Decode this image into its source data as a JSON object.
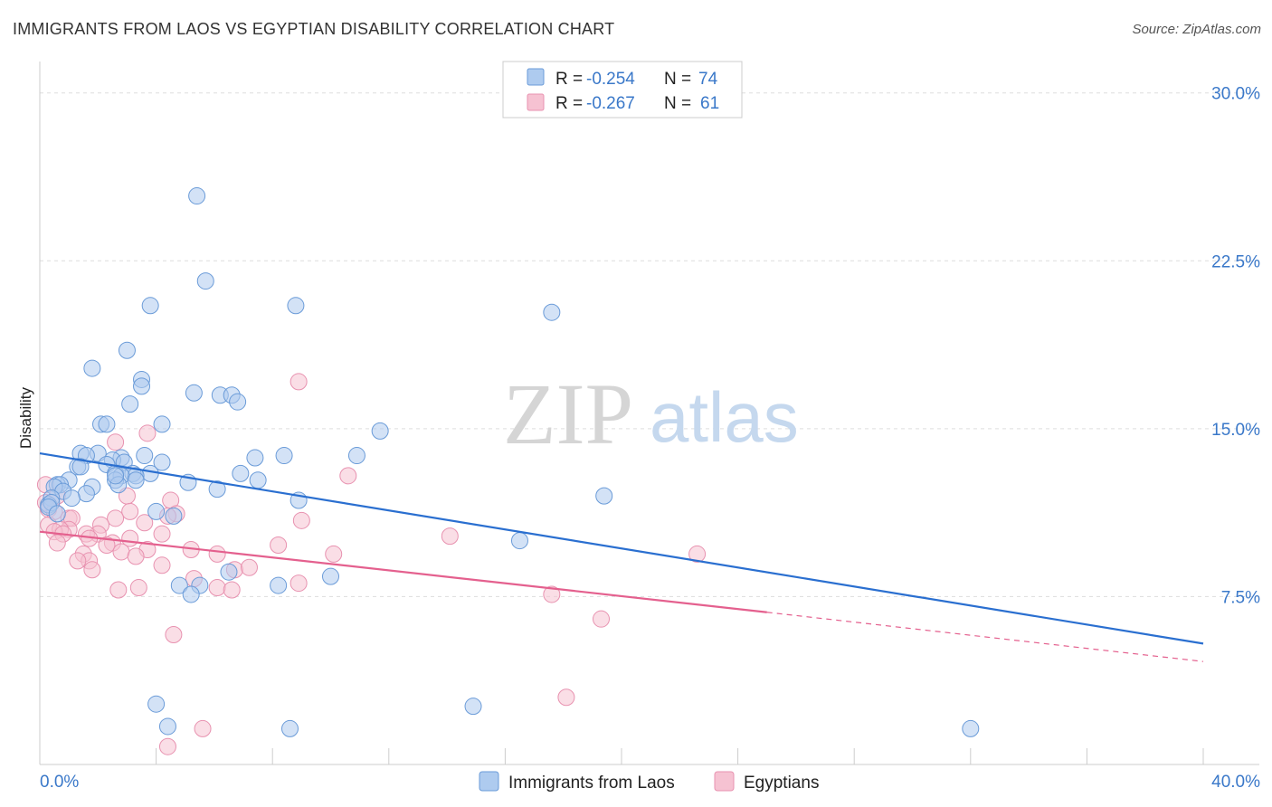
{
  "header": {
    "title": "IMMIGRANTS FROM LAOS VS EGYPTIAN DISABILITY CORRELATION CHART",
    "source": "Source: ZipAtlas.com"
  },
  "watermark": {
    "zip": "ZIP",
    "atlas": "atlas"
  },
  "legend": {
    "rows": [
      {
        "r_label": "R =",
        "r_value": "-0.254",
        "n_label": "N =",
        "n_value": "74"
      },
      {
        "r_label": "R =",
        "r_value": "-0.267",
        "n_label": "N =",
        "n_value": "61"
      }
    ]
  },
  "bottom_legend": [
    "Immigrants from Laos",
    "Egyptians"
  ],
  "colors": {
    "blue_fill": "#aecbef",
    "blue_stroke": "#6a9bd8",
    "blue_line": "#2a6fd0",
    "pink_fill": "#f6c2d2",
    "pink_stroke": "#e892b0",
    "pink_line": "#e4608e",
    "grid": "#dddddd",
    "tick_text": "#3a78c9"
  },
  "chart_data": {
    "type": "scatter",
    "title": "IMMIGRANTS FROM LAOS VS EGYPTIAN DISABILITY CORRELATION CHART",
    "ylabel": "Disability",
    "xlabel": "",
    "xlim": [
      0,
      40
    ],
    "ylim": [
      0,
      31
    ],
    "x_tick_labels": [
      {
        "v": 0,
        "label": "0.0%"
      },
      {
        "v": 40,
        "label": "40.0%"
      }
    ],
    "y_tick_labels": [
      {
        "v": 7.5,
        "label": "7.5%"
      },
      {
        "v": 15,
        "label": "15.0%"
      },
      {
        "v": 22.5,
        "label": "22.5%"
      },
      {
        "v": 30,
        "label": "30.0%"
      }
    ],
    "grid": true,
    "legend_position": "top-center",
    "series": [
      {
        "name": "Immigrants from Laos",
        "r": -0.254,
        "n": 74,
        "trend": {
          "x0": 0,
          "y0": 13.9,
          "x1": 40,
          "y1": 5.4
        },
        "points": [
          [
            5.4,
            25.4
          ],
          [
            5.7,
            21.6
          ],
          [
            3.8,
            20.5
          ],
          [
            8.8,
            20.5
          ],
          [
            17.6,
            20.2
          ],
          [
            3.0,
            18.5
          ],
          [
            1.8,
            17.7
          ],
          [
            3.5,
            17.2
          ],
          [
            3.5,
            16.9
          ],
          [
            5.3,
            16.6
          ],
          [
            6.2,
            16.5
          ],
          [
            6.6,
            16.5
          ],
          [
            6.8,
            16.2
          ],
          [
            3.1,
            16.1
          ],
          [
            4.2,
            15.2
          ],
          [
            2.1,
            15.2
          ],
          [
            2.3,
            15.2
          ],
          [
            11.7,
            14.9
          ],
          [
            1.4,
            13.9
          ],
          [
            2.0,
            13.9
          ],
          [
            3.6,
            13.8
          ],
          [
            8.4,
            13.8
          ],
          [
            10.9,
            13.8
          ],
          [
            7.4,
            13.7
          ],
          [
            1.6,
            13.8
          ],
          [
            2.8,
            13.7
          ],
          [
            2.5,
            13.6
          ],
          [
            2.9,
            13.5
          ],
          [
            4.2,
            13.5
          ],
          [
            2.3,
            13.4
          ],
          [
            1.3,
            13.3
          ],
          [
            1.4,
            13.3
          ],
          [
            2.6,
            13.0
          ],
          [
            3.8,
            13.0
          ],
          [
            3.2,
            13.0
          ],
          [
            6.9,
            13.0
          ],
          [
            3.3,
            12.9
          ],
          [
            2.8,
            12.9
          ],
          [
            2.6,
            12.7
          ],
          [
            3.3,
            12.7
          ],
          [
            5.1,
            12.6
          ],
          [
            7.5,
            12.7
          ],
          [
            1.0,
            12.7
          ],
          [
            0.6,
            12.5
          ],
          [
            0.7,
            12.5
          ],
          [
            0.5,
            12.4
          ],
          [
            1.8,
            12.4
          ],
          [
            2.7,
            12.5
          ],
          [
            6.1,
            12.3
          ],
          [
            0.8,
            12.2
          ],
          [
            1.6,
            12.1
          ],
          [
            1.1,
            11.9
          ],
          [
            0.4,
            11.9
          ],
          [
            0.3,
            11.6
          ],
          [
            0.4,
            11.7
          ],
          [
            8.9,
            11.8
          ],
          [
            19.4,
            12.0
          ],
          [
            0.3,
            11.5
          ],
          [
            4.0,
            11.3
          ],
          [
            4.6,
            11.1
          ],
          [
            16.5,
            10.0
          ],
          [
            6.5,
            8.6
          ],
          [
            10.0,
            8.4
          ],
          [
            4.8,
            8.0
          ],
          [
            5.5,
            8.0
          ],
          [
            8.2,
            8.0
          ],
          [
            5.2,
            7.6
          ],
          [
            4.0,
            2.7
          ],
          [
            14.9,
            2.6
          ],
          [
            4.4,
            1.7
          ],
          [
            8.6,
            1.6
          ],
          [
            32.0,
            1.6
          ],
          [
            0.6,
            11.2
          ],
          [
            2.6,
            12.9
          ]
        ]
      },
      {
        "name": "Egyptians",
        "r": -0.267,
        "n": 61,
        "trend": {
          "x0": 0,
          "y0": 10.4,
          "x1": 25,
          "y1": 6.8,
          "dash_x1": 40,
          "dash_y1": 4.6
        },
        "points": [
          [
            8.9,
            17.1
          ],
          [
            2.6,
            14.4
          ],
          [
            3.7,
            14.8
          ],
          [
            10.6,
            12.9
          ],
          [
            0.2,
            12.5
          ],
          [
            0.6,
            12.0
          ],
          [
            3.0,
            12.0
          ],
          [
            0.2,
            11.7
          ],
          [
            4.5,
            11.8
          ],
          [
            0.3,
            11.4
          ],
          [
            3.1,
            11.3
          ],
          [
            0.5,
            11.3
          ],
          [
            4.7,
            11.2
          ],
          [
            9.0,
            10.9
          ],
          [
            1.0,
            11.0
          ],
          [
            2.6,
            11.0
          ],
          [
            1.1,
            11.0
          ],
          [
            0.3,
            10.7
          ],
          [
            1.0,
            10.5
          ],
          [
            0.7,
            10.5
          ],
          [
            0.5,
            10.4
          ],
          [
            0.8,
            10.3
          ],
          [
            2.1,
            10.7
          ],
          [
            3.6,
            10.8
          ],
          [
            4.4,
            11.1
          ],
          [
            2.0,
            10.3
          ],
          [
            1.6,
            10.3
          ],
          [
            4.2,
            10.3
          ],
          [
            14.1,
            10.2
          ],
          [
            3.1,
            10.1
          ],
          [
            1.7,
            10.1
          ],
          [
            2.5,
            9.9
          ],
          [
            2.3,
            9.8
          ],
          [
            0.6,
            9.9
          ],
          [
            8.2,
            9.8
          ],
          [
            5.2,
            9.6
          ],
          [
            2.8,
            9.5
          ],
          [
            3.7,
            9.6
          ],
          [
            6.1,
            9.4
          ],
          [
            10.1,
            9.4
          ],
          [
            3.3,
            9.3
          ],
          [
            1.5,
            9.4
          ],
          [
            22.6,
            9.4
          ],
          [
            1.7,
            9.1
          ],
          [
            1.3,
            9.1
          ],
          [
            4.2,
            8.9
          ],
          [
            6.7,
            8.7
          ],
          [
            7.2,
            8.8
          ],
          [
            1.8,
            8.7
          ],
          [
            5.3,
            8.3
          ],
          [
            8.9,
            8.1
          ],
          [
            2.7,
            7.8
          ],
          [
            3.4,
            7.9
          ],
          [
            6.1,
            7.9
          ],
          [
            6.6,
            7.8
          ],
          [
            17.6,
            7.6
          ],
          [
            19.3,
            6.5
          ],
          [
            4.6,
            5.8
          ],
          [
            18.1,
            3.0
          ],
          [
            5.6,
            1.6
          ],
          [
            4.4,
            0.8
          ]
        ]
      }
    ]
  }
}
